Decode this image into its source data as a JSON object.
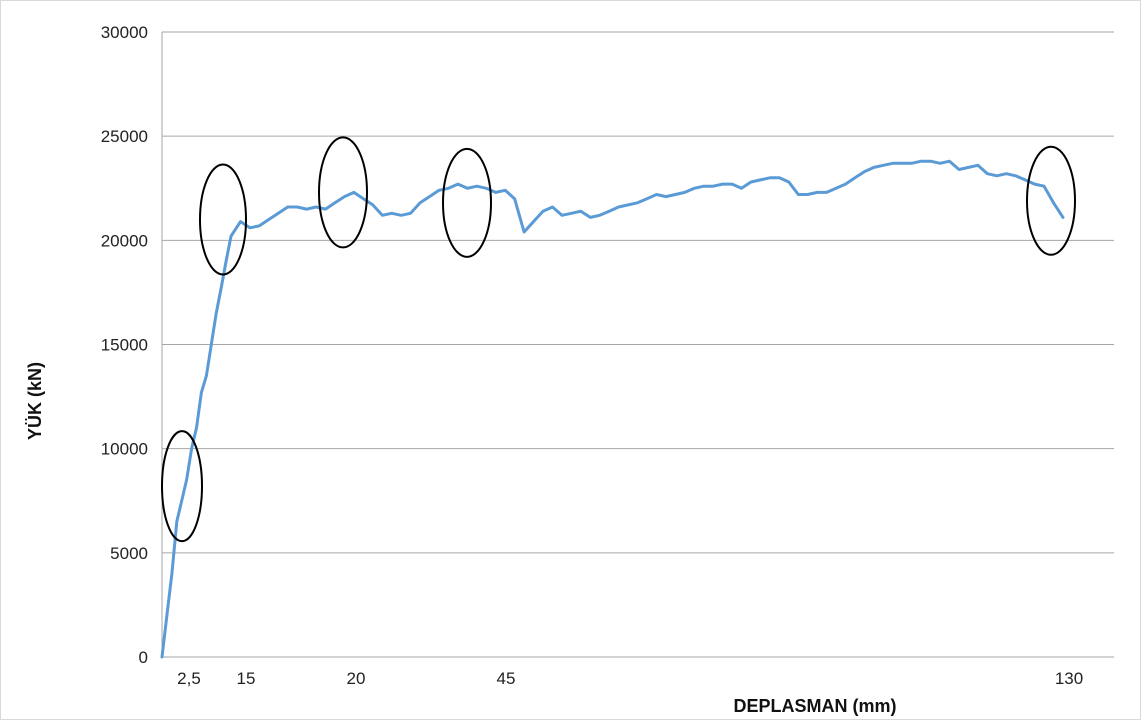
{
  "chart_data": {
    "type": "line",
    "title": "",
    "xlabel": "DEPLASMAN (mm)",
    "ylabel": "YÜK (kN)",
    "ylim": [
      0,
      30000
    ],
    "yticks": [
      0,
      5000,
      10000,
      15000,
      20000,
      25000,
      30000
    ],
    "xticks": [
      "2,5",
      "15",
      "20",
      "45",
      "130"
    ],
    "grid": "horizontal",
    "legend": "none",
    "series_color": "#5b9bd5",
    "series": [
      {
        "values": [
          0,
          2000,
          4000,
          6500,
          7500,
          8500,
          10000,
          11000,
          12700,
          13500,
          15000,
          16500,
          17700,
          19000,
          20200,
          20900,
          20600,
          20700,
          21000,
          21300,
          21600,
          21600,
          21500,
          21600,
          21500,
          21800,
          22100,
          22300,
          22000,
          21700,
          21200,
          21300,
          21200,
          21300,
          21800,
          22100,
          22400,
          22500,
          22700,
          22500,
          22600,
          22500,
          22300,
          22400,
          22000,
          20400,
          20900,
          21400,
          21600,
          21200,
          21300,
          21400,
          21100,
          21200,
          21400,
          21600,
          21700,
          21800,
          22000,
          22200,
          22100,
          22200,
          22300,
          22500,
          22600,
          22600,
          22700,
          22700,
          22500,
          22800,
          22900,
          23000,
          23000,
          22800,
          22200,
          22200,
          22300,
          22300,
          22500,
          22700,
          23000,
          23300,
          23500,
          23600,
          23700,
          23700,
          23700,
          23800,
          23800,
          23700,
          23800,
          23400,
          23500,
          23600,
          23200,
          23100,
          23200,
          23100,
          22900,
          22700,
          22600,
          21800,
          21100
        ]
      }
    ],
    "markers": [
      {
        "shape": "ellipse",
        "center_y": 8200
      },
      {
        "shape": "ellipse",
        "center_y": 21000
      },
      {
        "shape": "ellipse",
        "center_y": 22300
      },
      {
        "shape": "ellipse",
        "center_y": 21800
      },
      {
        "shape": "ellipse",
        "center_y": 21900
      }
    ]
  }
}
